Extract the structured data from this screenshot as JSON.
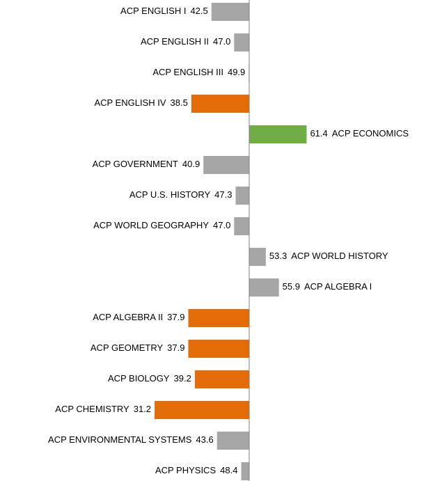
{
  "chart_data": {
    "type": "bar",
    "orientation": "horizontal",
    "categories": [
      "ACP ENGLISH I",
      "ACP ENGLISH II",
      "ACP ENGLISH III",
      "ACP ENGLISH IV",
      "ACP ECONOMICS",
      "ACP GOVERNMENT",
      "ACP U.S. HISTORY",
      "ACP WORLD GEOGRAPHY",
      "ACP WORLD HISTORY",
      "ACP ALGEBRA I",
      "ACP ALGEBRA II",
      "ACP GEOMETRY",
      "ACP BIOLOGY",
      "ACP CHEMISTRY",
      "ACP ENVIRONMENTAL SYSTEMS",
      "ACP PHYSICS"
    ],
    "values": [
      42.5,
      47,
      49.9,
      38.5,
      61.4,
      40.9,
      47.3,
      47,
      53.3,
      55.9,
      37.9,
      37.9,
      39.2,
      31.2,
      43.6,
      48.4
    ],
    "value_labels": [
      "42.5",
      "47.0",
      "49.9",
      "38.5",
      "61.4",
      "40.9",
      "47.3",
      "47.0",
      "53.3",
      "55.9",
      "37.9",
      "37.9",
      "39.2",
      "31.2",
      "43.6",
      "48.4"
    ],
    "colors": [
      "#a6a6a6",
      "#a6a6a6",
      "#a6a6a6",
      "#e36c09",
      "#70ad47",
      "#a6a6a6",
      "#a6a6a6",
      "#a6a6a6",
      "#a6a6a6",
      "#a6a6a6",
      "#e36c09",
      "#e36c09",
      "#e36c09",
      "#e36c09",
      "#a6a6a6",
      "#a6a6a6"
    ],
    "baseline": 50,
    "xlim": [
      0.5,
      86.5
    ]
  }
}
